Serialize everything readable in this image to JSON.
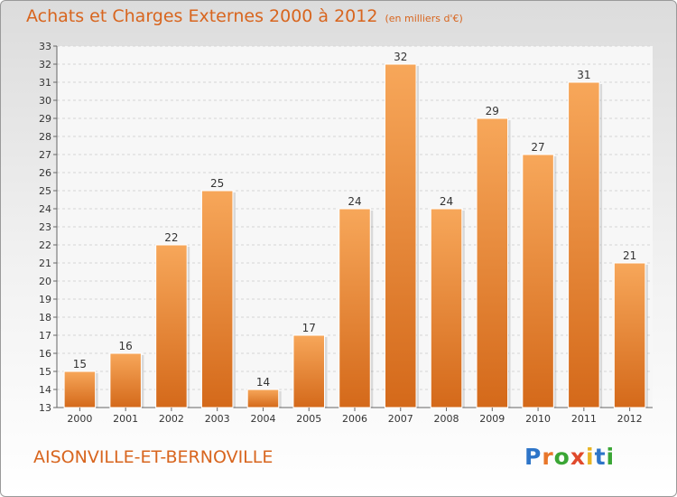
{
  "header": {
    "title": "Achats et Charges Externes 2000 à 2012",
    "subtitle": "(en milliers d'€)"
  },
  "footer": {
    "city": "AISONVILLE-ET-BERNOVILLE",
    "logo": {
      "letters": [
        "P",
        "r",
        "o",
        "x",
        "i",
        "t",
        "i"
      ],
      "colors": [
        "#2e75c8",
        "#e8762a",
        "#3aa635",
        "#e04a2c",
        "#e8b423",
        "#2e75c8",
        "#3aa635"
      ]
    }
  },
  "colors": {
    "bar": "#f0913c",
    "bar_light": "#f7a75a",
    "bar_dark": "#d4691a",
    "title": "#d8651e"
  },
  "chart_data": {
    "type": "bar",
    "title": "Achats et Charges Externes 2000 à 2012",
    "subtitle": "(en milliers d'€)",
    "categories": [
      "2000",
      "2001",
      "2002",
      "2003",
      "2004",
      "2005",
      "2006",
      "2007",
      "2008",
      "2009",
      "2010",
      "2011",
      "2012"
    ],
    "values": [
      15,
      16,
      22,
      25,
      14,
      17,
      24,
      32,
      24,
      29,
      27,
      31,
      21
    ],
    "ylim": [
      13,
      33
    ],
    "yticks": [
      13,
      14,
      15,
      16,
      17,
      18,
      19,
      20,
      21,
      22,
      23,
      24,
      25,
      26,
      27,
      28,
      29,
      30,
      31,
      32,
      33
    ],
    "grid": true,
    "legend": "none"
  }
}
